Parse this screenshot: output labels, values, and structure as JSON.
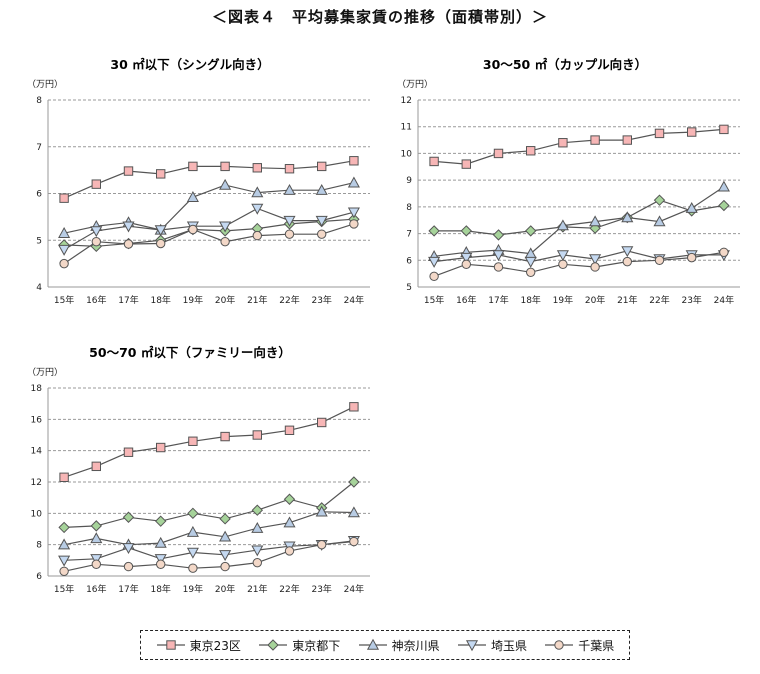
{
  "page_title": "＜図表４　平均募集家賃の推移（面積帯別）＞",
  "colors": {
    "tokyo23": "#f7b6b6",
    "tokyoto": "#a6d39a",
    "kanagawa": "#b8cce4",
    "saitama": "#c5d9f1",
    "chiba": "#f3d8c8",
    "line": "#555555",
    "grid": "#9a9a9a"
  },
  "legend": [
    {
      "name": "東京23区",
      "marker": "square"
    },
    {
      "name": "東京都下",
      "marker": "diamond"
    },
    {
      "name": "神奈川県",
      "marker": "triangle-up"
    },
    {
      "name": "埼玉県",
      "marker": "triangle-down"
    },
    {
      "name": "千葉県",
      "marker": "circle"
    }
  ],
  "chart_data": [
    {
      "type": "line",
      "title": "30 ㎡以下（シングル向き）",
      "ylabel": "（万円）",
      "categories": [
        "15年",
        "16年",
        "17年",
        "18年",
        "19年",
        "20年",
        "21年",
        "22年",
        "23年",
        "24年"
      ],
      "ylim": [
        4,
        8
      ],
      "yticks": [
        "4",
        "5",
        "6",
        "7",
        "8"
      ],
      "grid": true,
      "series": [
        {
          "name": "東京23区",
          "values": [
            5.9,
            6.2,
            6.48,
            6.42,
            6.58,
            6.58,
            6.55,
            6.53,
            6.58,
            6.7
          ]
        },
        {
          "name": "東京都下",
          "values": [
            4.9,
            4.87,
            4.93,
            5.0,
            5.23,
            5.2,
            5.25,
            5.35,
            5.4,
            5.45
          ]
        },
        {
          "name": "神奈川県",
          "values": [
            5.15,
            5.3,
            5.38,
            5.22,
            5.92,
            6.18,
            6.02,
            6.07,
            6.07,
            6.23
          ]
        },
        {
          "name": "埼玉県",
          "values": [
            4.8,
            5.2,
            5.3,
            5.22,
            5.3,
            5.3,
            5.68,
            5.42,
            5.42,
            5.6
          ]
        },
        {
          "name": "千葉県",
          "values": [
            4.5,
            4.97,
            4.92,
            4.93,
            5.23,
            4.97,
            5.1,
            5.13,
            5.13,
            5.35
          ]
        }
      ]
    },
    {
      "type": "line",
      "title": "30～50 ㎡（カップル向き）",
      "ylabel": "（万円）",
      "categories": [
        "15年",
        "16年",
        "17年",
        "18年",
        "19年",
        "20年",
        "21年",
        "22年",
        "23年",
        "24年"
      ],
      "ylim": [
        5,
        12
      ],
      "yticks": [
        "5",
        "6",
        "7",
        "8",
        "9",
        "10",
        "11",
        "12"
      ],
      "grid": true,
      "series": [
        {
          "name": "東京23区",
          "values": [
            9.7,
            9.6,
            10.0,
            10.1,
            10.4,
            10.5,
            10.5,
            10.75,
            10.8,
            10.9
          ]
        },
        {
          "name": "東京都下",
          "values": [
            7.1,
            7.1,
            6.95,
            7.1,
            7.25,
            7.2,
            7.6,
            8.25,
            7.85,
            8.05
          ]
        },
        {
          "name": "神奈川県",
          "values": [
            6.15,
            6.3,
            6.38,
            6.25,
            7.3,
            7.45,
            7.6,
            7.45,
            7.95,
            8.75
          ]
        },
        {
          "name": "埼玉県",
          "values": [
            5.95,
            6.1,
            6.2,
            5.95,
            6.2,
            6.05,
            6.35,
            6.05,
            6.2,
            6.2
          ]
        },
        {
          "name": "千葉県",
          "values": [
            5.4,
            5.85,
            5.75,
            5.55,
            5.85,
            5.75,
            5.95,
            6.0,
            6.1,
            6.3
          ]
        }
      ]
    },
    {
      "type": "line",
      "title": "50～70 ㎡以下（ファミリー向き）",
      "ylabel": "（万円）",
      "categories": [
        "15年",
        "16年",
        "17年",
        "18年",
        "19年",
        "20年",
        "21年",
        "22年",
        "23年",
        "24年"
      ],
      "ylim": [
        6,
        18
      ],
      "yticks": [
        "6",
        "8",
        "10",
        "12",
        "14",
        "16",
        "18"
      ],
      "grid": true,
      "series": [
        {
          "name": "東京23区",
          "values": [
            12.3,
            13.0,
            13.9,
            14.2,
            14.6,
            14.9,
            15.0,
            15.3,
            15.8,
            16.8
          ]
        },
        {
          "name": "東京都下",
          "values": [
            9.1,
            9.2,
            9.75,
            9.5,
            10.0,
            9.65,
            10.2,
            10.9,
            10.35,
            12.0
          ]
        },
        {
          "name": "神奈川県",
          "values": [
            8.0,
            8.4,
            8.0,
            8.1,
            8.8,
            8.5,
            9.05,
            9.4,
            10.1,
            10.05
          ]
        },
        {
          "name": "埼玉県",
          "values": [
            7.0,
            7.1,
            7.8,
            7.1,
            7.5,
            7.35,
            7.65,
            7.9,
            8.0,
            8.25
          ]
        },
        {
          "name": "千葉県",
          "values": [
            6.3,
            6.75,
            6.6,
            6.75,
            6.5,
            6.6,
            6.85,
            7.6,
            8.0,
            8.2
          ]
        }
      ]
    }
  ]
}
